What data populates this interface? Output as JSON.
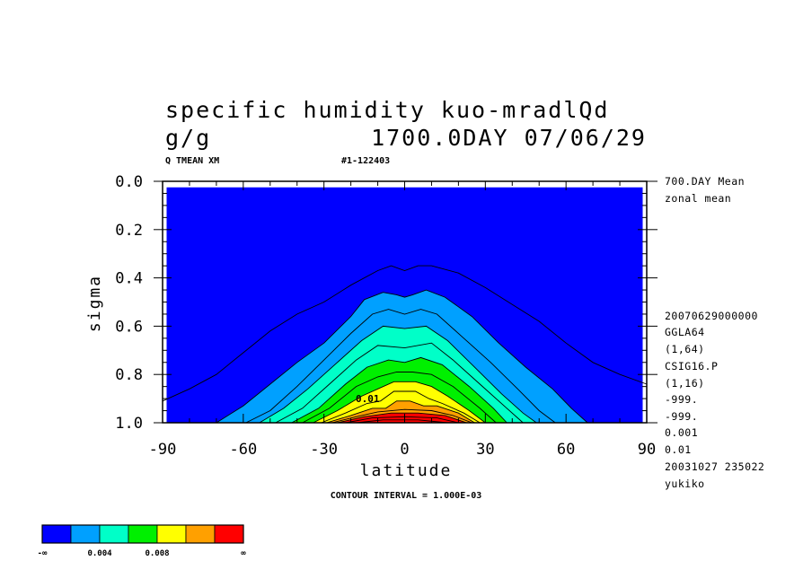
{
  "header": {
    "title_line1": "specific humidity  kuo-mradlQd",
    "units": "g/g",
    "datetime": "1700.0DAY 07/06/29",
    "var_tag": "Q TMEAN XM",
    "run_tag": "#1-122403"
  },
  "info_panel": [
    "700.DAY Mean",
    "zonal mean",
    "20070629000000",
    "GGLA64",
    "(1,64)",
    "CSIG16.P",
    "(1,16)",
    "-999.",
    "-999.",
    "0.001",
    "0.01",
    "20031027 235022",
    "yukiko"
  ],
  "footer": {
    "contour_interval": "CONTOUR INTERVAL = 1.000E-03"
  },
  "colorbar": {
    "colors": [
      "#0000ff",
      "#00a0ff",
      "#00ffc8",
      "#00f000",
      "#ffff00",
      "#ffa000",
      "#ff0000"
    ],
    "labels": [
      "-∞",
      "0.004",
      "0.008",
      "∞"
    ]
  },
  "chart_data": {
    "type": "contour",
    "xlabel": "latitude",
    "ylabel": "sigma",
    "xlim": [
      -90,
      90
    ],
    "ylim": [
      1.0,
      0.0
    ],
    "xticks": [
      -90,
      -60,
      -30,
      0,
      30,
      60,
      90
    ],
    "xtick_labels": [
      "-90",
      "-60",
      "-30",
      "0",
      "30",
      "60",
      "90"
    ],
    "yticks": [
      0.0,
      0.2,
      0.4,
      0.6,
      0.8,
      1.0
    ],
    "ytick_labels": [
      "0.0",
      "0.2",
      "0.4",
      "0.6",
      "0.8",
      "1.0"
    ],
    "contour_interval": 0.001,
    "contour_label": "0.01",
    "fill_levels": [
      0.002,
      0.004,
      0.006,
      0.008,
      0.01,
      0.012
    ],
    "lines": [
      {
        "level": 0.001,
        "points": [
          [
            -90,
            0.91
          ],
          [
            -80,
            0.86
          ],
          [
            -70,
            0.8
          ],
          [
            -60,
            0.71
          ],
          [
            -50,
            0.62
          ],
          [
            -40,
            0.55
          ],
          [
            -30,
            0.5
          ],
          [
            -20,
            0.43
          ],
          [
            -10,
            0.37
          ],
          [
            -5,
            0.35
          ],
          [
            0,
            0.37
          ],
          [
            5,
            0.35
          ],
          [
            10,
            0.35
          ],
          [
            20,
            0.38
          ],
          [
            30,
            0.44
          ],
          [
            40,
            0.51
          ],
          [
            50,
            0.58
          ],
          [
            60,
            0.67
          ],
          [
            70,
            0.75
          ],
          [
            80,
            0.8
          ],
          [
            90,
            0.84
          ]
        ]
      },
      {
        "level": 0.002,
        "points": [
          [
            -70,
            1.0
          ],
          [
            -60,
            0.93
          ],
          [
            -50,
            0.84
          ],
          [
            -40,
            0.75
          ],
          [
            -30,
            0.67
          ],
          [
            -20,
            0.56
          ],
          [
            -15,
            0.49
          ],
          [
            -8,
            0.46
          ],
          [
            -3,
            0.47
          ],
          [
            0,
            0.48
          ],
          [
            3,
            0.47
          ],
          [
            8,
            0.45
          ],
          [
            15,
            0.48
          ],
          [
            25,
            0.56
          ],
          [
            35,
            0.67
          ],
          [
            45,
            0.77
          ],
          [
            55,
            0.86
          ],
          [
            62,
            0.94
          ],
          [
            68,
            1.0
          ]
        ]
      },
      {
        "level": 0.003,
        "points": [
          [
            -59,
            1.0
          ],
          [
            -50,
            0.95
          ],
          [
            -40,
            0.85
          ],
          [
            -30,
            0.74
          ],
          [
            -20,
            0.63
          ],
          [
            -12,
            0.55
          ],
          [
            -6,
            0.53
          ],
          [
            0,
            0.55
          ],
          [
            6,
            0.53
          ],
          [
            12,
            0.55
          ],
          [
            22,
            0.65
          ],
          [
            32,
            0.75
          ],
          [
            42,
            0.86
          ],
          [
            50,
            0.95
          ],
          [
            56,
            1.0
          ]
        ]
      },
      {
        "level": 0.004,
        "points": [
          [
            -54,
            1.0
          ],
          [
            -45,
            0.94
          ],
          [
            -36,
            0.86
          ],
          [
            -26,
            0.76
          ],
          [
            -16,
            0.66
          ],
          [
            -8,
            0.6
          ],
          [
            0,
            0.61
          ],
          [
            8,
            0.6
          ],
          [
            16,
            0.66
          ],
          [
            26,
            0.77
          ],
          [
            36,
            0.88
          ],
          [
            44,
            0.96
          ],
          [
            49,
            1.0
          ]
        ]
      },
      {
        "level": 0.005,
        "points": [
          [
            -48,
            1.0
          ],
          [
            -38,
            0.94
          ],
          [
            -28,
            0.84
          ],
          [
            -18,
            0.74
          ],
          [
            -10,
            0.68
          ],
          [
            0,
            0.69
          ],
          [
            10,
            0.67
          ],
          [
            18,
            0.74
          ],
          [
            28,
            0.84
          ],
          [
            38,
            0.94
          ],
          [
            44,
            1.0
          ]
        ]
      },
      {
        "level": 0.006,
        "points": [
          [
            -42,
            1.0
          ],
          [
            -32,
            0.94
          ],
          [
            -22,
            0.84
          ],
          [
            -14,
            0.77
          ],
          [
            -6,
            0.74
          ],
          [
            0,
            0.75
          ],
          [
            6,
            0.73
          ],
          [
            14,
            0.76
          ],
          [
            24,
            0.85
          ],
          [
            33,
            0.94
          ],
          [
            38,
            1.0
          ]
        ]
      },
      {
        "level": 0.007,
        "points": [
          [
            -38,
            1.0
          ],
          [
            -28,
            0.94
          ],
          [
            -18,
            0.85
          ],
          [
            -10,
            0.81
          ],
          [
            -3,
            0.79
          ],
          [
            3,
            0.79
          ],
          [
            10,
            0.8
          ],
          [
            18,
            0.85
          ],
          [
            28,
            0.94
          ],
          [
            34,
            1.0
          ]
        ]
      },
      {
        "level": 0.008,
        "points": [
          [
            -34,
            1.0
          ],
          [
            -25,
            0.95
          ],
          [
            -16,
            0.89
          ],
          [
            -10,
            0.86
          ],
          [
            -4,
            0.83
          ],
          [
            4,
            0.83
          ],
          [
            10,
            0.85
          ],
          [
            16,
            0.89
          ],
          [
            24,
            0.95
          ],
          [
            30,
            1.0
          ]
        ]
      },
      {
        "level": 0.009,
        "points": [
          [
            -31,
            1.0
          ],
          [
            -22,
            0.96
          ],
          [
            -14,
            0.92
          ],
          [
            -9,
            0.91
          ],
          [
            -4,
            0.87
          ],
          [
            4,
            0.87
          ],
          [
            9,
            0.9
          ],
          [
            14,
            0.92
          ],
          [
            22,
            0.96
          ],
          [
            28,
            1.0
          ]
        ]
      },
      {
        "level": 0.01,
        "points": [
          [
            -29,
            1.0
          ],
          [
            -20,
            0.97
          ],
          [
            -12,
            0.94
          ],
          [
            -7,
            0.94
          ],
          [
            -3,
            0.91
          ],
          [
            2,
            0.91
          ],
          [
            7,
            0.93
          ],
          [
            12,
            0.93
          ],
          [
            20,
            0.96
          ],
          [
            26,
            1.0
          ]
        ]
      },
      {
        "level": 0.011,
        "points": [
          [
            -27,
            1.0
          ],
          [
            -18,
            0.975
          ],
          [
            -10,
            0.955
          ],
          [
            0,
            0.945
          ],
          [
            10,
            0.95
          ],
          [
            18,
            0.97
          ],
          [
            25,
            1.0
          ]
        ]
      },
      {
        "level": 0.012,
        "points": [
          [
            -25,
            1.0
          ],
          [
            -15,
            0.975
          ],
          [
            -5,
            0.96
          ],
          [
            5,
            0.96
          ],
          [
            15,
            0.97
          ],
          [
            23,
            1.0
          ]
        ]
      },
      {
        "level": 0.013,
        "points": [
          [
            -22,
            1.0
          ],
          [
            -12,
            0.98
          ],
          [
            0,
            0.975
          ],
          [
            12,
            0.98
          ],
          [
            20,
            1.0
          ]
        ]
      },
      {
        "level": 0.014,
        "points": [
          [
            -18,
            1.0
          ],
          [
            -8,
            0.988
          ],
          [
            5,
            0.988
          ],
          [
            16,
            1.0
          ]
        ]
      }
    ]
  }
}
